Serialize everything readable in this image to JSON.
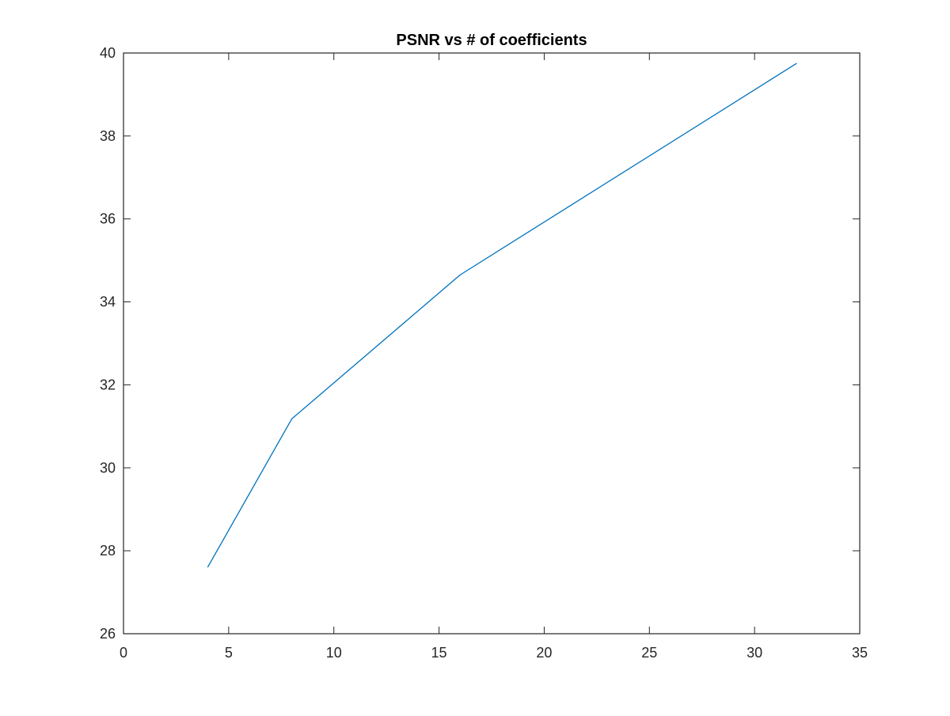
{
  "chart_data": {
    "type": "line",
    "title": "PSNR vs # of coefficients",
    "xlabel": "",
    "ylabel": "",
    "xlim": [
      0,
      35
    ],
    "ylim": [
      26,
      40
    ],
    "xticks": [
      0,
      5,
      10,
      15,
      20,
      25,
      30,
      35
    ],
    "yticks": [
      26,
      28,
      30,
      32,
      34,
      36,
      38,
      40
    ],
    "xtick_labels": [
      "0",
      "5",
      "10",
      "15",
      "20",
      "25",
      "30",
      "35"
    ],
    "ytick_labels": [
      "26",
      "28",
      "30",
      "32",
      "34",
      "36",
      "38",
      "40"
    ],
    "grid": false,
    "legend": "none",
    "series": [
      {
        "color": "#0072bd",
        "x": [
          4,
          8,
          16,
          32
        ],
        "y": [
          27.6,
          31.18,
          34.65,
          39.75
        ]
      }
    ]
  }
}
